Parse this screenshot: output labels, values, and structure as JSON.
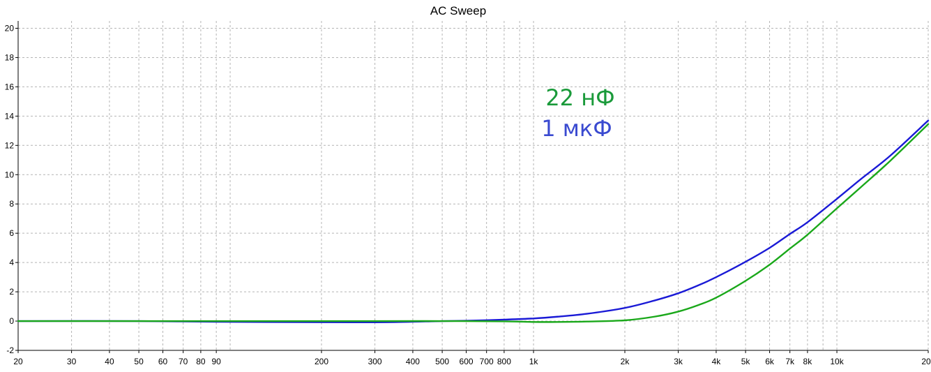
{
  "chart_data": {
    "type": "line",
    "title": "AC Sweep",
    "xlabel": "",
    "ylabel": "",
    "x_scale": "log",
    "xlim": [
      20,
      20000
    ],
    "ylim": [
      -2,
      20.5
    ],
    "grid": true,
    "x_ticks": [
      {
        "value": 20,
        "label": "20"
      },
      {
        "value": 30,
        "label": "30"
      },
      {
        "value": 40,
        "label": "40"
      },
      {
        "value": 50,
        "label": "50"
      },
      {
        "value": 60,
        "label": "60"
      },
      {
        "value": 70,
        "label": "70"
      },
      {
        "value": 80,
        "label": "80"
      },
      {
        "value": 90,
        "label": "90"
      },
      {
        "value": 200,
        "label": "200"
      },
      {
        "value": 300,
        "label": "300"
      },
      {
        "value": 400,
        "label": "400"
      },
      {
        "value": 500,
        "label": "500"
      },
      {
        "value": 600,
        "label": "600"
      },
      {
        "value": 700,
        "label": "700"
      },
      {
        "value": 800,
        "label": "800"
      },
      {
        "value": 1000,
        "label": "1k"
      },
      {
        "value": 2000,
        "label": "2k"
      },
      {
        "value": 3000,
        "label": "3k"
      },
      {
        "value": 4000,
        "label": "4k"
      },
      {
        "value": 5000,
        "label": "5k"
      },
      {
        "value": 6000,
        "label": "6k"
      },
      {
        "value": 7000,
        "label": "7k"
      },
      {
        "value": 8000,
        "label": "8k"
      },
      {
        "value": 10000,
        "label": "10k"
      },
      {
        "value": 20000,
        "label": "20k"
      }
    ],
    "y_ticks": [
      {
        "value": -2,
        "label": "-2"
      },
      {
        "value": 0,
        "label": "0"
      },
      {
        "value": 2,
        "label": "2"
      },
      {
        "value": 4,
        "label": "4"
      },
      {
        "value": 6,
        "label": "6"
      },
      {
        "value": 8,
        "label": "8"
      },
      {
        "value": 10,
        "label": "10"
      },
      {
        "value": 12,
        "label": "12"
      },
      {
        "value": 14,
        "label": "14"
      },
      {
        "value": 16,
        "label": "16"
      },
      {
        "value": 18,
        "label": "18"
      },
      {
        "value": 20,
        "label": "20"
      }
    ],
    "series": [
      {
        "name": "1 мкФ",
        "color": "#1a1ad6",
        "x": [
          20,
          50,
          90,
          200,
          330,
          500,
          600,
          800,
          1000,
          1200,
          1500,
          2000,
          2500,
          3000,
          3500,
          4000,
          5000,
          6000,
          7000,
          8000,
          10000,
          12000,
          15000,
          20000
        ],
        "y": [
          0,
          0,
          -0.05,
          -0.08,
          -0.08,
          0,
          0.02,
          0.1,
          0.18,
          0.3,
          0.5,
          0.9,
          1.4,
          1.9,
          2.45,
          3.0,
          4.05,
          5.0,
          5.95,
          6.75,
          8.35,
          9.7,
          11.3,
          13.7
        ]
      },
      {
        "name": "22 нФ",
        "color": "#1aa81a",
        "x": [
          20,
          100,
          300,
          500,
          800,
          1000,
          1200,
          1500,
          2000,
          2500,
          3000,
          3500,
          4000,
          5000,
          6000,
          7000,
          8000,
          10000,
          12000,
          15000,
          20000
        ],
        "y": [
          0,
          0,
          0,
          0,
          -0.02,
          -0.06,
          -0.06,
          -0.03,
          0.05,
          0.3,
          0.65,
          1.1,
          1.6,
          2.75,
          3.85,
          4.95,
          5.9,
          7.7,
          9.15,
          10.95,
          13.45
        ]
      }
    ],
    "annotations": [
      {
        "text": "22 нФ",
        "color": "#1a9a3a"
      },
      {
        "text": "1 мкФ",
        "color": "#3a4ad0"
      }
    ]
  }
}
